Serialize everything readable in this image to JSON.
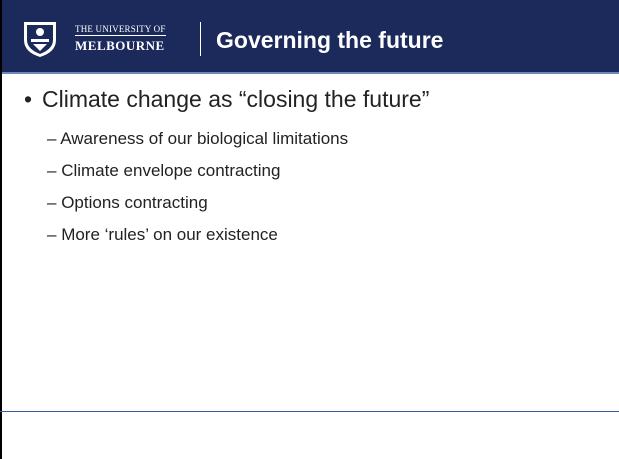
{
  "header": {
    "logo_line1": "THE UNIVERSITY OF",
    "logo_line2": "MELBOURNE",
    "title": "Governing the future"
  },
  "bullets": [
    {
      "text": "Climate change as “closing the future”",
      "subitems": [
        "Awareness of our biological limitations",
        "Climate envelope contracting",
        "Options contracting",
        "More ‘rules’ on our existence"
      ]
    }
  ]
}
